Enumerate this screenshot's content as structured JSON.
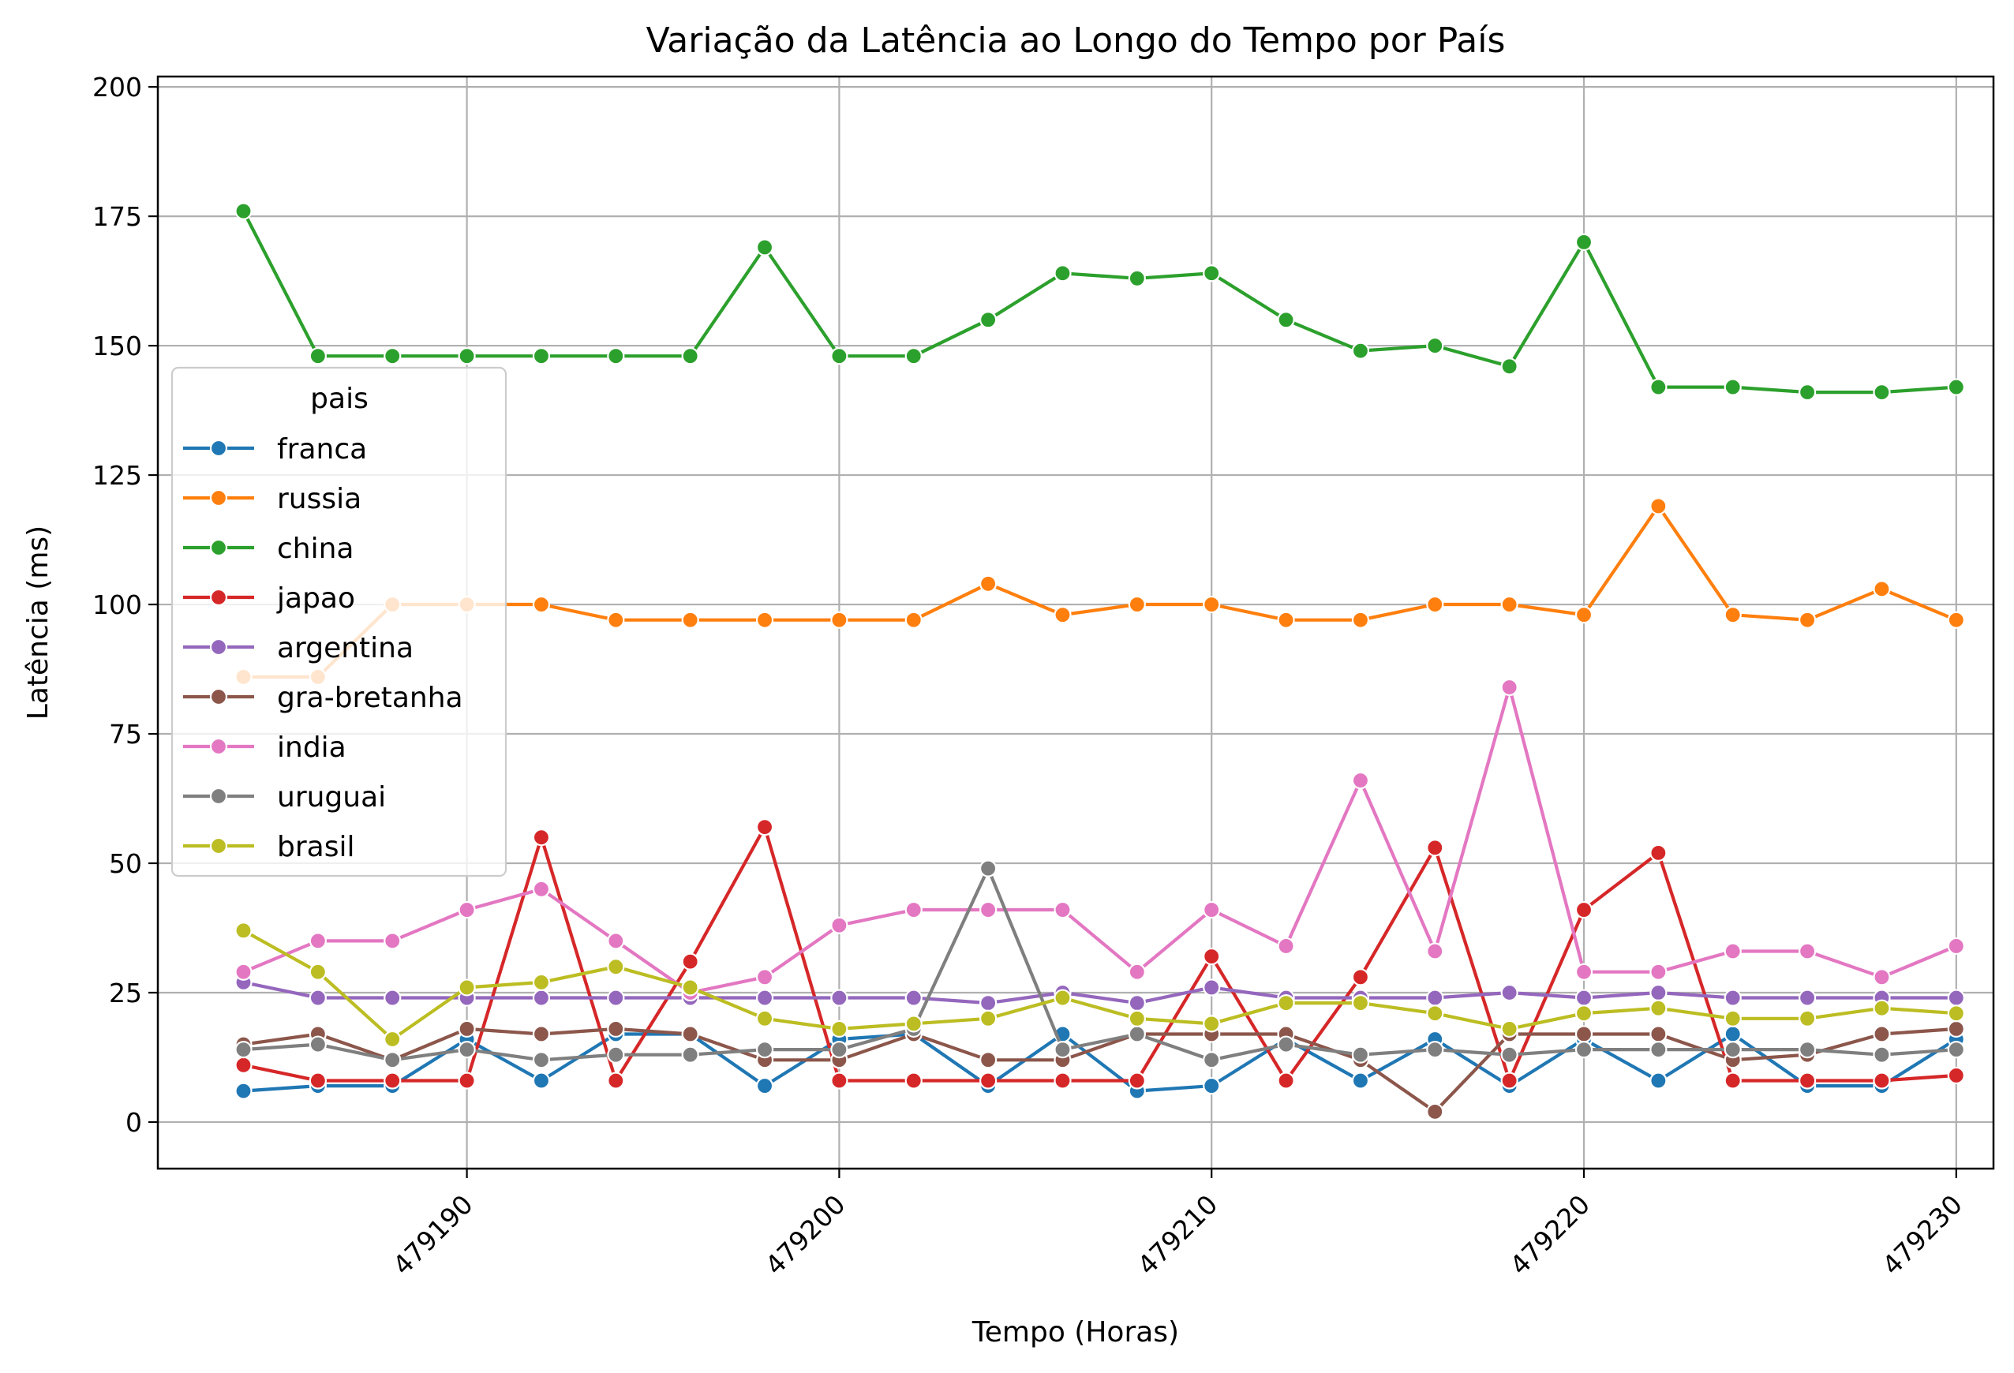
{
  "chart_data": {
    "type": "line",
    "title": "Variação da Latência ao Longo do Tempo por País",
    "xlabel": "Tempo (Horas)",
    "ylabel": "Latência (ms)",
    "xlim": [
      479181.7,
      479231.0
    ],
    "ylim": [
      -9,
      202
    ],
    "xticks": [
      479190,
      479200,
      479210,
      479220,
      479230
    ],
    "yticks": [
      0,
      25,
      50,
      75,
      100,
      125,
      150,
      175,
      200
    ],
    "grid": true,
    "legend": {
      "title": "pais",
      "placement": "center-left"
    },
    "x": [
      479184,
      479186,
      479188,
      479190,
      479192,
      479194,
      479196,
      479198,
      479200,
      479202,
      479204,
      479206,
      479208,
      479210,
      479212,
      479214,
      479216,
      479218,
      479220,
      479222,
      479224,
      479226,
      479228,
      479230
    ],
    "series": [
      {
        "name": "franca",
        "color": "#1f77b4",
        "values": [
          6,
          7,
          7,
          16,
          8,
          17,
          17,
          7,
          16,
          17,
          7,
          17,
          6,
          7,
          16,
          8,
          16,
          7,
          16,
          8,
          17,
          7,
          7,
          16
        ]
      },
      {
        "name": "russia",
        "color": "#ff7f0e",
        "values": [
          86,
          86,
          100,
          100,
          100,
          97,
          97,
          97,
          97,
          97,
          104,
          98,
          100,
          100,
          97,
          97,
          100,
          100,
          98,
          119,
          98,
          97,
          103,
          97
        ]
      },
      {
        "name": "china",
        "color": "#2ca02c",
        "values": [
          176,
          148,
          148,
          148,
          148,
          148,
          148,
          169,
          148,
          148,
          155,
          164,
          163,
          164,
          155,
          149,
          150,
          146,
          170,
          142,
          142,
          141,
          141,
          142
        ]
      },
      {
        "name": "japao",
        "color": "#d62728",
        "values": [
          11,
          8,
          8,
          8,
          55,
          8,
          31,
          57,
          8,
          8,
          8,
          8,
          8,
          32,
          8,
          28,
          53,
          8,
          41,
          52,
          8,
          8,
          8,
          9
        ]
      },
      {
        "name": "argentina",
        "color": "#9467bd",
        "values": [
          27,
          24,
          24,
          24,
          24,
          24,
          24,
          24,
          24,
          24,
          23,
          25,
          23,
          26,
          24,
          24,
          24,
          25,
          24,
          25,
          24,
          24,
          24,
          24
        ]
      },
      {
        "name": "gra-bretanha",
        "color": "#8c564b",
        "values": [
          15,
          17,
          12,
          18,
          17,
          18,
          17,
          12,
          12,
          17,
          12,
          12,
          17,
          17,
          17,
          12,
          2,
          17,
          17,
          17,
          12,
          13,
          17,
          18
        ]
      },
      {
        "name": "india",
        "color": "#e377c2",
        "values": [
          29,
          35,
          35,
          41,
          45,
          35,
          25,
          28,
          38,
          41,
          41,
          41,
          29,
          41,
          34,
          66,
          33,
          84,
          29,
          29,
          33,
          33,
          28,
          34
        ]
      },
      {
        "name": "uruguai",
        "color": "#7f7f7f",
        "values": [
          14,
          15,
          12,
          14,
          12,
          13,
          13,
          14,
          14,
          18,
          49,
          14,
          17,
          12,
          15,
          13,
          14,
          13,
          14,
          14,
          14,
          14,
          13,
          14
        ]
      },
      {
        "name": "brasil",
        "color": "#bcbd22",
        "values": [
          37,
          29,
          16,
          26,
          27,
          30,
          26,
          20,
          18,
          19,
          20,
          24,
          20,
          19,
          23,
          23,
          21,
          18,
          21,
          22,
          20,
          20,
          22,
          21
        ]
      }
    ]
  }
}
